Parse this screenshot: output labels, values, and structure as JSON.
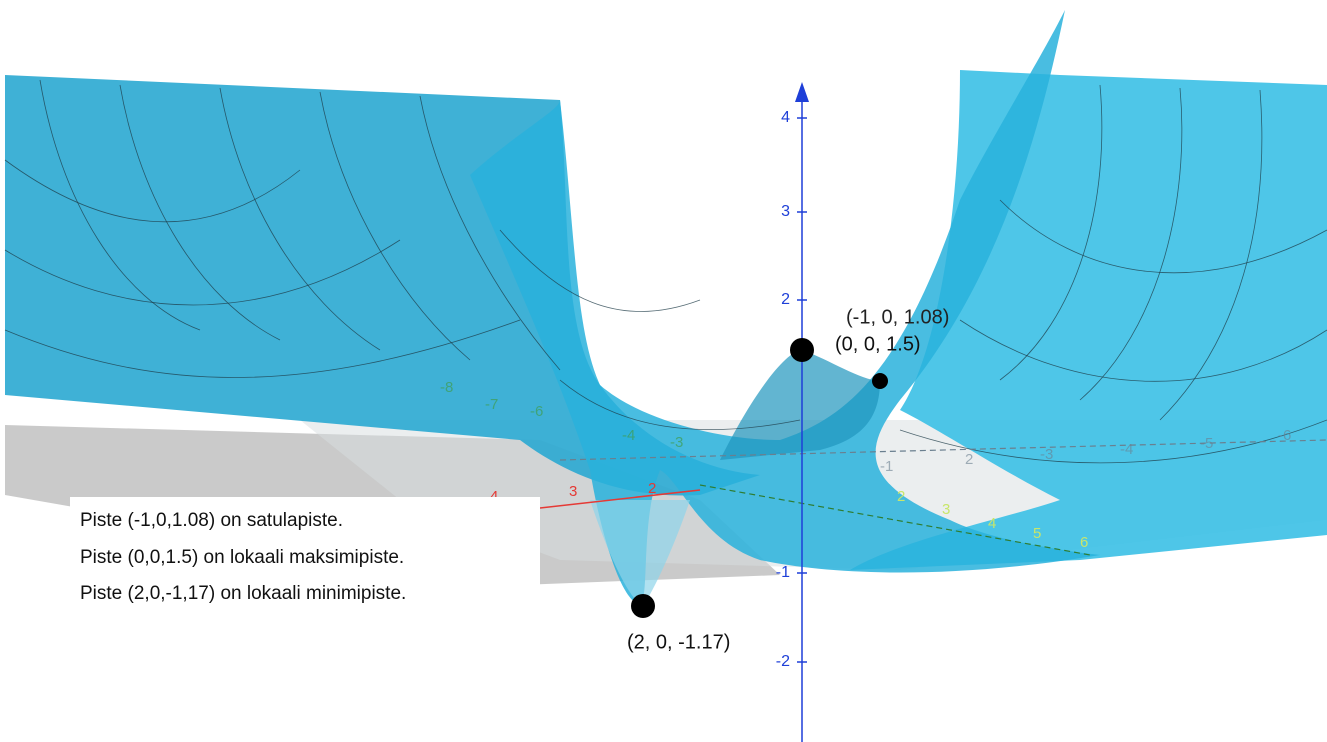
{
  "z_axis_labels": [
    "4",
    "3",
    "2",
    "-1",
    "-2"
  ],
  "x_axis_labels": [
    "4",
    "3",
    "2"
  ],
  "y_axis_labels_front": [
    "2",
    "3",
    "4",
    "5",
    "6"
  ],
  "y_axis_labels_back": [
    "-8",
    "-7",
    "-6",
    "-4",
    "-3"
  ],
  "grid_labels_right": [
    "-1",
    "2",
    "-3",
    "-4",
    "-5",
    "-6"
  ],
  "points": [
    {
      "label": "(-1, 0, 1.08)"
    },
    {
      "label": "(0, 0, 1.5)"
    },
    {
      "label": "(2, 0, -1.17)"
    }
  ],
  "info_box": {
    "lines": [
      "Piste (-1,0,1.08) on satulapiste.",
      "Piste (0,0,1.5) on lokaali maksimipiste.",
      "Piste (2,0,-1,17) on lokaali minimipiste."
    ]
  }
}
